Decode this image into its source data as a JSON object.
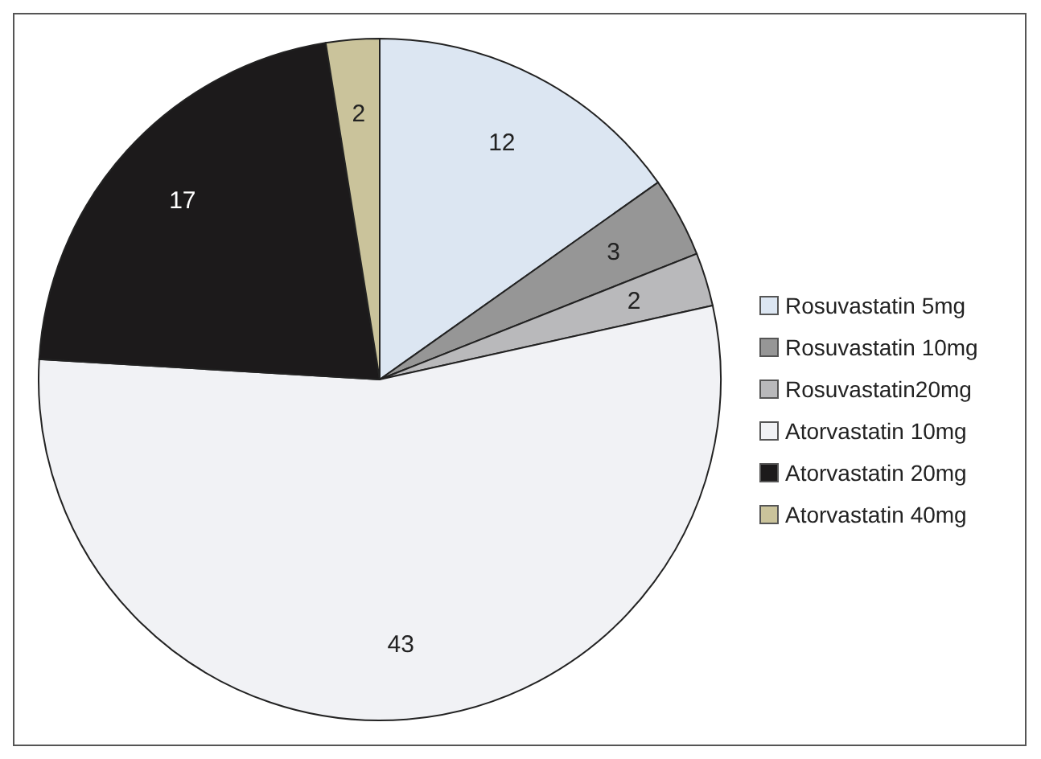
{
  "chart_data": {
    "type": "pie",
    "categories": [
      "Rosuvastatin 5mg",
      "Rosuvastatin 10mg",
      "Rosuvastatin20mg",
      "Atorvastatin 10mg",
      "Atorvastatin 20mg",
      "Atorvastatin 40mg"
    ],
    "values": [
      12,
      3,
      2,
      43,
      17,
      2
    ],
    "colors": [
      "#dce6f2",
      "#969696",
      "#b9b9bb",
      "#f1f2f5",
      "#1c1a1b",
      "#cac39b"
    ],
    "data_labels": true,
    "legend": "right"
  }
}
